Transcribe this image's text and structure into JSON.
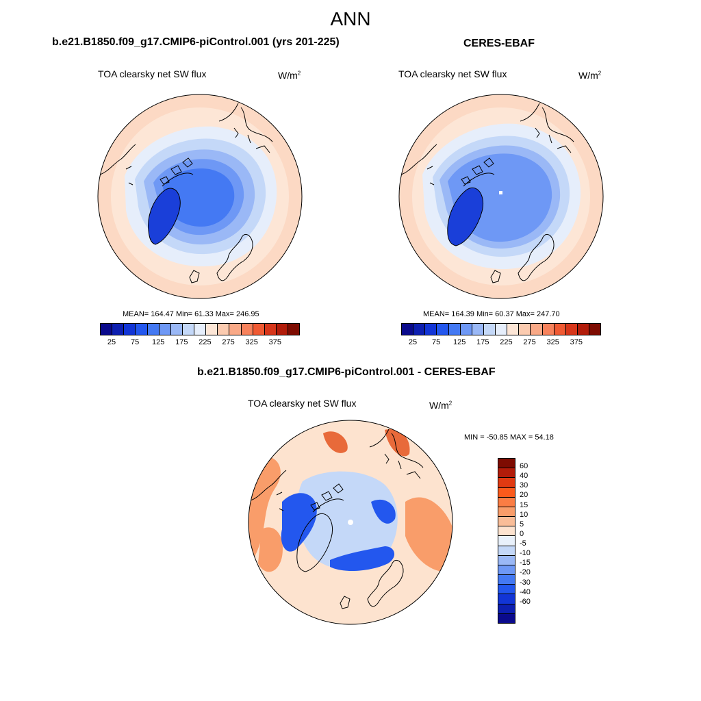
{
  "main_title": "ANN",
  "panels": {
    "model": {
      "title": "b.e21.B1850.f09_g17.CMIP6-piControl.001 (yrs 201-225)",
      "variable": "TOA clearsky net SW flux",
      "units": "W/m",
      "units_exp": "2",
      "stats": "MEAN= 164.47  Min=  61.33  Max= 246.95"
    },
    "obs": {
      "title": "CERES-EBAF",
      "variable": "TOA clearsky net SW flux",
      "units": "W/m",
      "units_exp": "2",
      "stats": "MEAN= 164.39  Min=  60.37  Max= 247.70"
    },
    "diff": {
      "title": "b.e21.B1850.f09_g17.CMIP6-piControl.001 - CERES-EBAF",
      "variable": "TOA clearsky net SW flux",
      "units": "W/m",
      "units_exp": "2",
      "stats": "MIN = -50.85 MAX =  54.18"
    }
  },
  "colorbar_main": {
    "colors": [
      "#0a0a8c",
      "#0d1fb0",
      "#1235d6",
      "#2357ee",
      "#4479f3",
      "#6e98f5",
      "#9ab8f6",
      "#c4d8f8",
      "#e6eefb",
      "#fde6d6",
      "#fbcbb0",
      "#f9a987",
      "#f7825c",
      "#f05a33",
      "#d7361a",
      "#b21c0a",
      "#7e0c02"
    ],
    "tick_labels": [
      "25",
      "75",
      "125",
      "175",
      "225",
      "275",
      "325",
      "375"
    ]
  },
  "colorbar_diff": {
    "colors": [
      "#7e0c02",
      "#b21c0a",
      "#e03a12",
      "#fb5a1c",
      "#fb7d44",
      "#f99d6a",
      "#f9bd98",
      "#fde3cf",
      "#e9f1fb",
      "#c4d8f8",
      "#9ab8f6",
      "#6e98f5",
      "#4479f3",
      "#2357ee",
      "#1235d6",
      "#0d1fb0",
      "#0a0a8c"
    ],
    "tick_labels": [
      "60",
      "40",
      "30",
      "20",
      "15",
      "10",
      "5",
      "0",
      "-5",
      "-10",
      "-15",
      "-20",
      "-30",
      "-40",
      "-60"
    ]
  },
  "map_colors": {
    "ring_outer": "#fcd9c4",
    "ring_1": "#fde6d6",
    "ring_2": "#e6eefb",
    "ring_3": "#c4d8f8",
    "ring_4": "#9ab8f6",
    "ring_5": "#6e98f5",
    "ring_6": "#4479f3",
    "greenland": "#1a3fd9",
    "diff_bg": "#fde3cf",
    "diff_warm": "#f99d6a",
    "diff_hot": "#e86a3a",
    "diff_cool": "#c4d8f8",
    "diff_blue": "#2357ee"
  }
}
